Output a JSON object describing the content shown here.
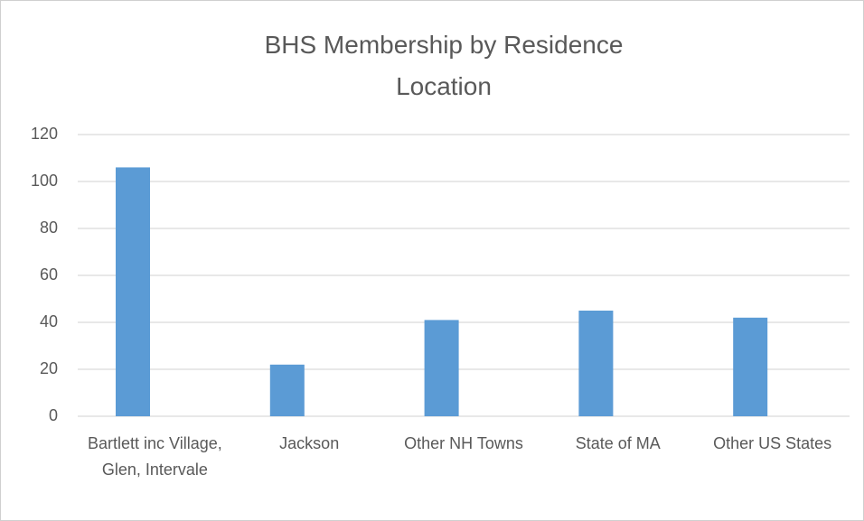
{
  "chart_data": {
    "type": "bar",
    "title": "BHS Membership by Residence Location",
    "categories": [
      "Bartlett inc Village, Glen, Intervale",
      "Jackson",
      "Other NH Towns",
      "State of MA",
      "Other US States"
    ],
    "values": [
      106,
      22,
      41,
      45,
      42
    ],
    "color": "#5b9bd5",
    "ylim": [
      0,
      120
    ],
    "yticks": [
      0,
      20,
      40,
      60,
      80,
      100,
      120
    ],
    "grid": true
  }
}
